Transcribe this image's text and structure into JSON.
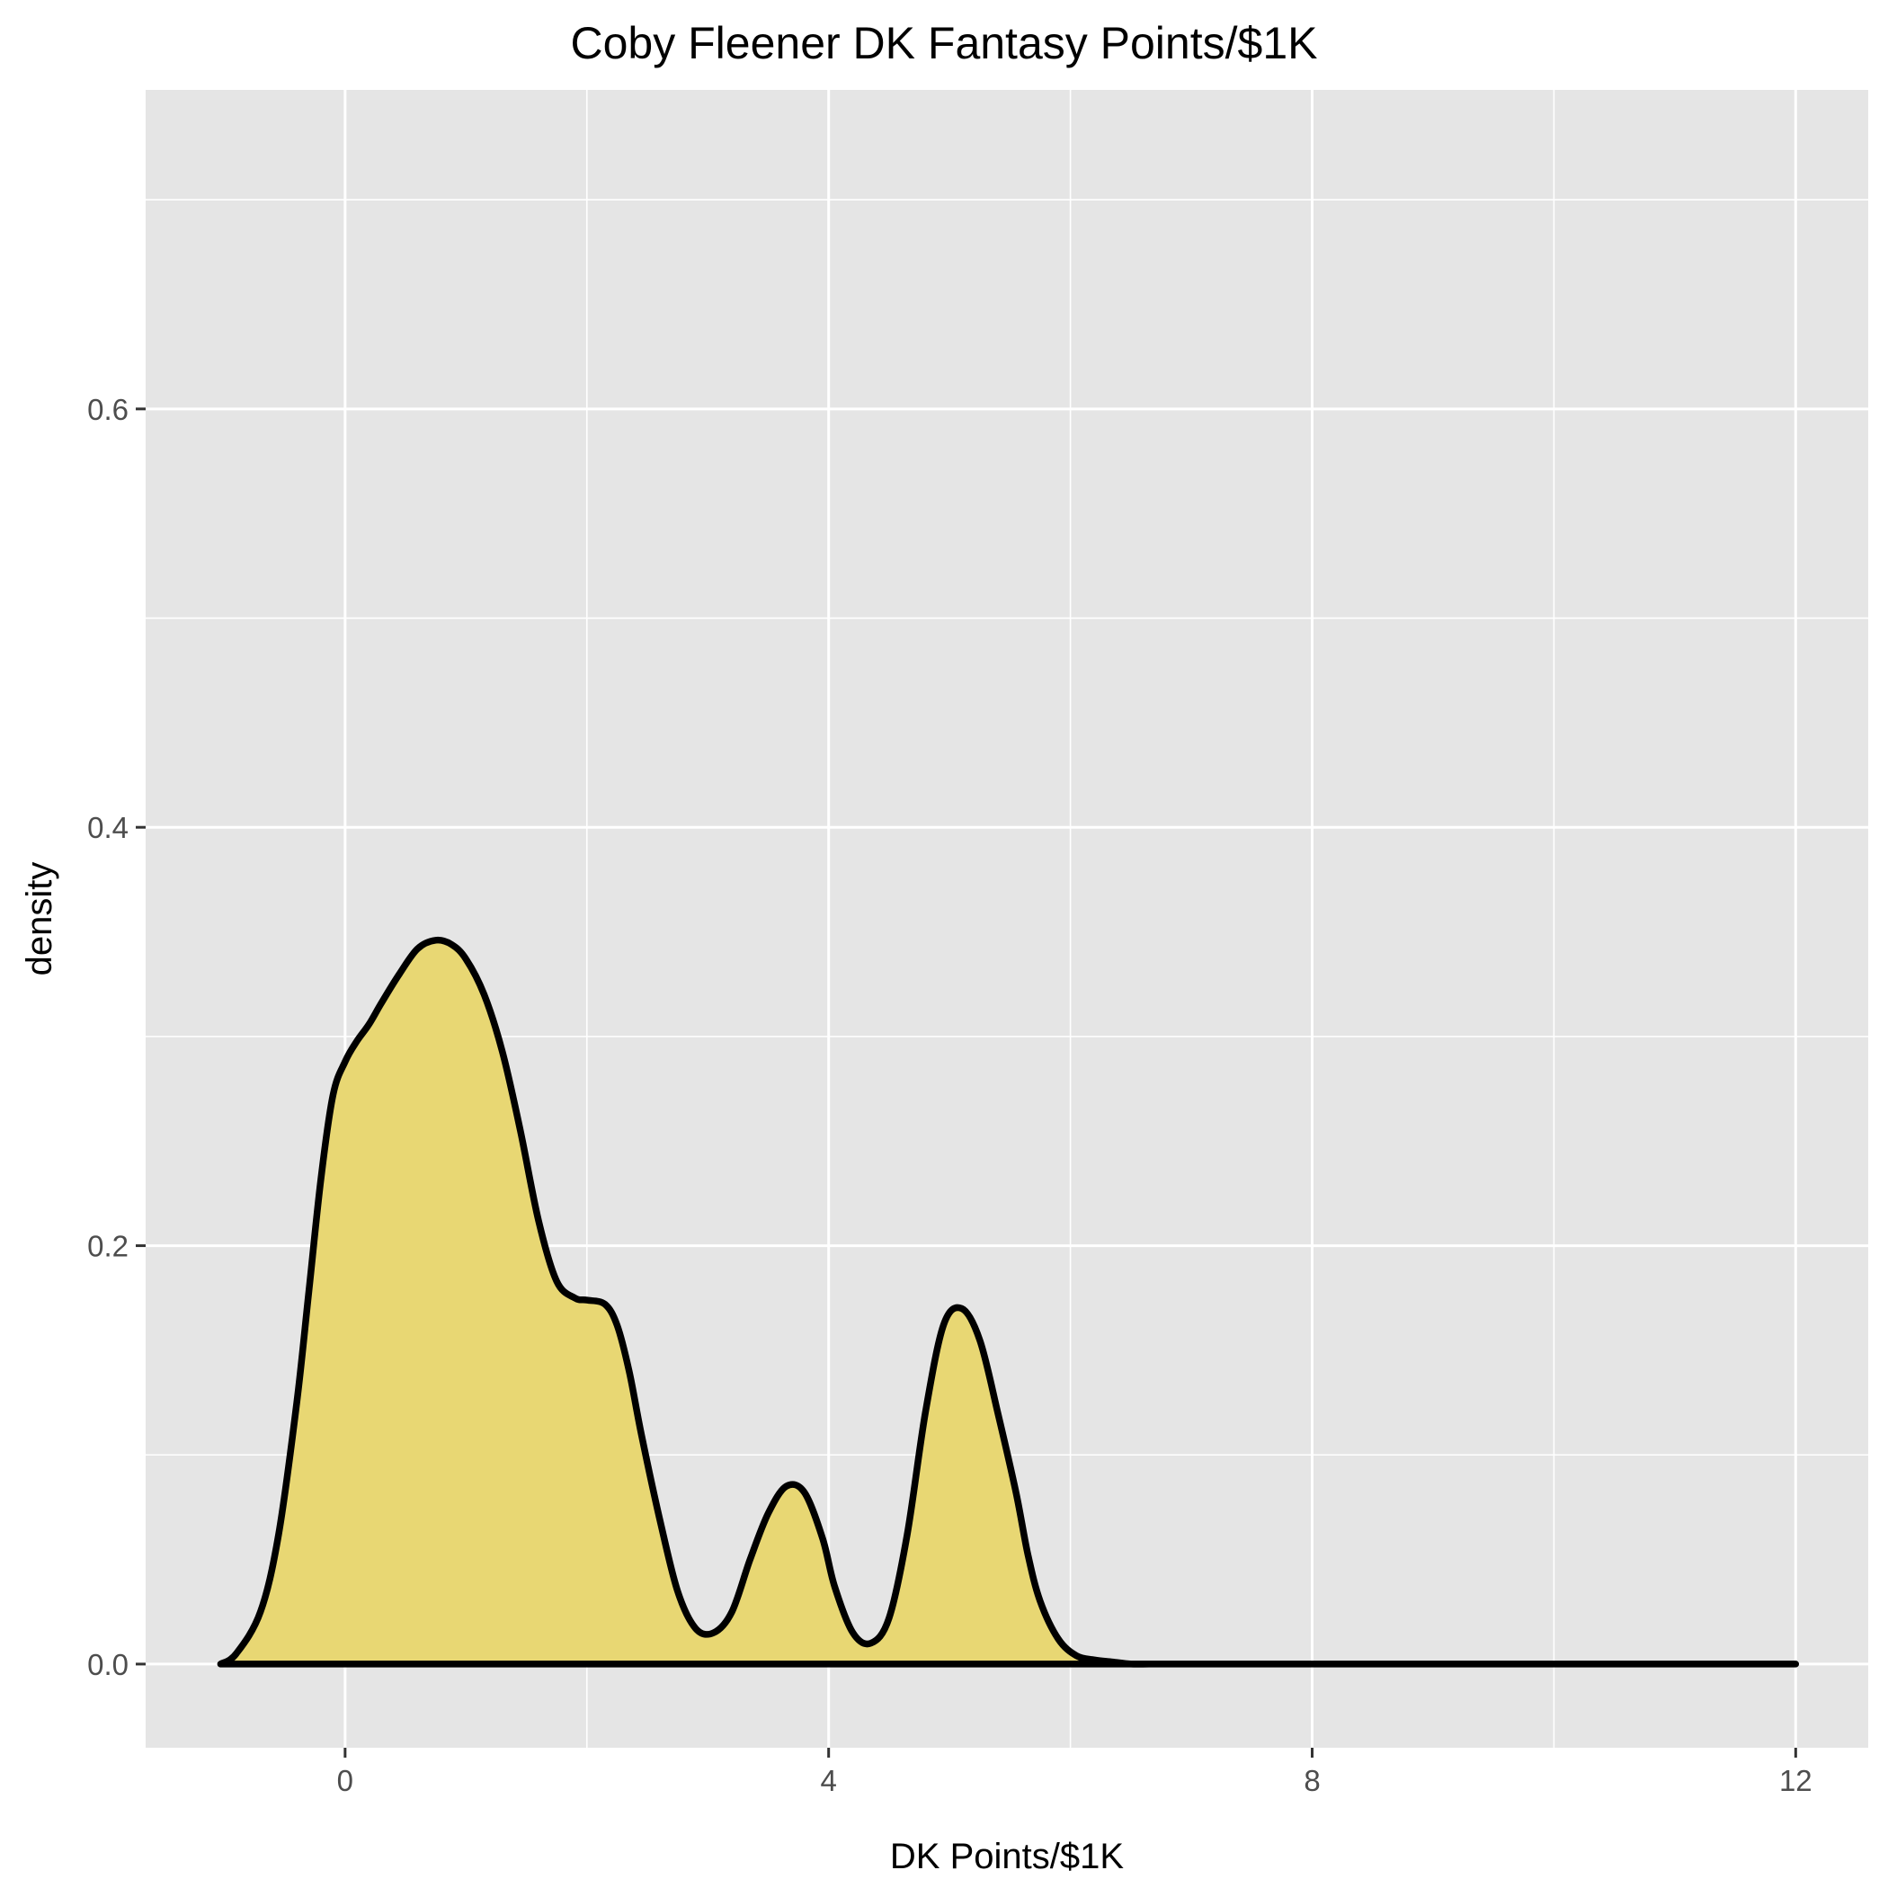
{
  "chart_data": {
    "type": "area",
    "title": "Coby Fleener DK Fantasy Points/$1K",
    "xlabel": "DK Points/$1K",
    "ylabel": "density",
    "xlim": [
      -1.65,
      12.6
    ],
    "ylim": [
      -0.04,
      0.7525
    ],
    "x_ticks": [
      0,
      4,
      8,
      12
    ],
    "x_tick_labels": [
      "0",
      "4",
      "8",
      "12"
    ],
    "y_ticks": [
      0.0,
      0.2,
      0.4,
      0.6
    ],
    "y_tick_labels": [
      "0.0",
      "0.2",
      "0.4",
      "0.6"
    ],
    "grid": true,
    "fill_color": "#e8d773",
    "line_color": "#000000",
    "panel_color": "#e5e5e5",
    "x": [
      -1.03,
      -0.9,
      -0.7,
      -0.55,
      -0.4,
      -0.3,
      -0.2,
      -0.1,
      0.0,
      0.1,
      0.2,
      0.3,
      0.45,
      0.6,
      0.75,
      0.88,
      1.0,
      1.15,
      1.3,
      1.45,
      1.6,
      1.75,
      1.9,
      2.0,
      2.15,
      2.25,
      2.35,
      2.45,
      2.6,
      2.75,
      2.9,
      3.05,
      3.2,
      3.35,
      3.5,
      3.65,
      3.8,
      3.95,
      4.05,
      4.2,
      4.35,
      4.5,
      4.65,
      4.8,
      4.95,
      5.1,
      5.25,
      5.4,
      5.55,
      5.65,
      5.75,
      5.9,
      6.05,
      6.2,
      6.35,
      6.5,
      6.65,
      6.8,
      7.0,
      7.3,
      7.6,
      8.0,
      9.0,
      10.0,
      11.0,
      12.0
    ],
    "y": [
      0.0,
      0.005,
      0.025,
      0.062,
      0.125,
      0.178,
      0.232,
      0.272,
      0.288,
      0.298,
      0.306,
      0.316,
      0.33,
      0.342,
      0.346,
      0.344,
      0.337,
      0.32,
      0.293,
      0.255,
      0.212,
      0.183,
      0.175,
      0.174,
      0.172,
      0.162,
      0.14,
      0.11,
      0.07,
      0.035,
      0.017,
      0.015,
      0.025,
      0.05,
      0.072,
      0.085,
      0.082,
      0.06,
      0.037,
      0.015,
      0.01,
      0.022,
      0.062,
      0.12,
      0.162,
      0.17,
      0.155,
      0.12,
      0.082,
      0.052,
      0.03,
      0.012,
      0.004,
      0.002,
      0.001,
      0.0,
      0.0,
      0.0,
      0.0,
      0.0,
      0.0,
      0.0,
      0.0,
      0.0,
      0.0,
      0.0
    ]
  }
}
